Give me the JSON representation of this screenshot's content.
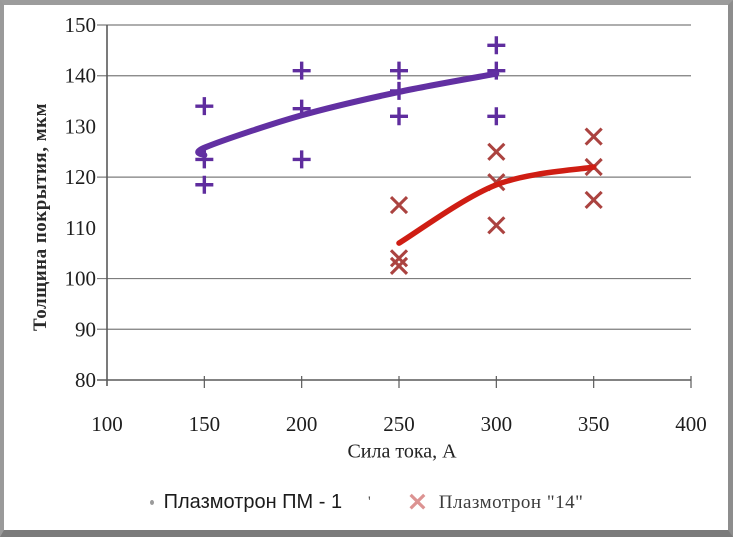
{
  "figure": {
    "legend": {
      "items": [
        {
          "label": "Плазмотрон ПМ - 1",
          "marker": "dot-icon"
        },
        {
          "label": "Плазмотрон \"14\"",
          "marker": "x-marker-icon"
        }
      ],
      "stray_mark": "'"
    }
  },
  "chart_data": {
    "type": "scatter",
    "title": "",
    "xlabel": "Сила тока, А",
    "ylabel": "Толщина покрытия, мкм",
    "xlim": [
      100,
      400
    ],
    "ylim": [
      80,
      150
    ],
    "x_ticks": [
      100,
      150,
      200,
      250,
      300,
      350,
      400
    ],
    "y_ticks": [
      80,
      90,
      100,
      110,
      120,
      130,
      140,
      150
    ],
    "gridlines_y": [
      90,
      100,
      120,
      140,
      150
    ],
    "grid": "horizontal-partial",
    "legend_position": "bottom",
    "series": [
      {
        "name": "Плазмотрон ПМ - 1",
        "marker": "plus",
        "marker_color": "#5f2d9e",
        "line_color": "#6230a2",
        "line_width": 6,
        "points": [
          [
            150,
            134
          ],
          [
            150,
            123.5
          ],
          [
            150,
            118.5
          ],
          [
            200,
            141
          ],
          [
            200,
            133.5
          ],
          [
            200,
            123.5
          ],
          [
            250,
            141
          ],
          [
            250,
            137
          ],
          [
            250,
            132
          ],
          [
            300,
            146
          ],
          [
            300,
            141
          ],
          [
            300,
            132
          ]
        ],
        "trend": [
          [
            150,
            124.3
          ],
          [
            150.7,
            125.9
          ],
          [
            200,
            132.2
          ],
          [
            250,
            136.8
          ],
          [
            300,
            140.4
          ]
        ]
      },
      {
        "name": "Плазмотрон \"14\"",
        "marker": "x",
        "marker_color": "#ab4340",
        "line_color": "#cf1d13",
        "line_width": 5.5,
        "points": [
          [
            250,
            114.5
          ],
          [
            250,
            104
          ],
          [
            250,
            102.5
          ],
          [
            300,
            125
          ],
          [
            300,
            119
          ],
          [
            300,
            110.5
          ],
          [
            350,
            128
          ],
          [
            350,
            122
          ],
          [
            350,
            115.5
          ]
        ],
        "trend": [
          [
            250,
            107
          ],
          [
            300,
            118.5
          ],
          [
            350,
            122
          ]
        ]
      }
    ]
  }
}
